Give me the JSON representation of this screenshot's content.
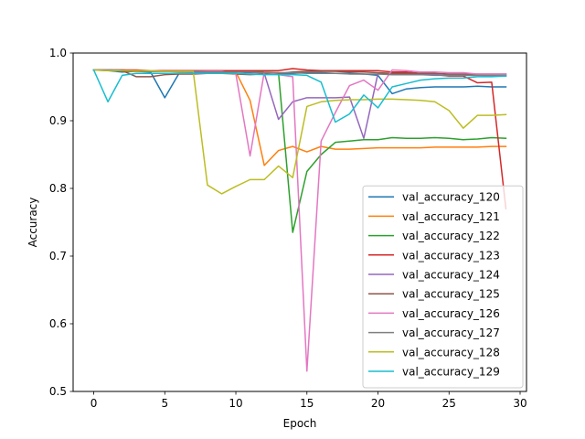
{
  "chart_data": {
    "type": "line",
    "title": "",
    "xlabel": "Epoch",
    "ylabel": "Accuracy",
    "xlim": [
      -1.45,
      30.45
    ],
    "ylim": [
      0.5,
      1.0
    ],
    "x_ticks": [
      0,
      5,
      10,
      15,
      20,
      25,
      30
    ],
    "y_ticks": [
      0.5,
      0.6,
      0.7,
      0.8,
      0.9,
      1.0
    ],
    "grid": false,
    "legend_position": "lower-right",
    "x": [
      0,
      1,
      2,
      3,
      4,
      5,
      6,
      7,
      8,
      9,
      10,
      11,
      12,
      13,
      14,
      15,
      16,
      17,
      18,
      19,
      20,
      21,
      22,
      23,
      24,
      25,
      26,
      27,
      28,
      29
    ],
    "series": [
      {
        "name": "val_accuracy_120",
        "color": "#1f77b4",
        "values": [
          0.975,
          0.974,
          0.972,
          0.973,
          0.972,
          0.934,
          0.97,
          0.97,
          0.971,
          0.972,
          0.972,
          0.971,
          0.971,
          0.97,
          0.97,
          0.971,
          0.971,
          0.97,
          0.97,
          0.969,
          0.967,
          0.94,
          0.947,
          0.949,
          0.95,
          0.95,
          0.95,
          0.951,
          0.95,
          0.95
        ]
      },
      {
        "name": "val_accuracy_121",
        "color": "#ff7f0e",
        "values": [
          0.975,
          0.975,
          0.974,
          0.973,
          0.973,
          0.973,
          0.972,
          0.972,
          0.972,
          0.972,
          0.972,
          0.93,
          0.834,
          0.856,
          0.862,
          0.854,
          0.862,
          0.858,
          0.858,
          0.859,
          0.86,
          0.86,
          0.86,
          0.86,
          0.861,
          0.861,
          0.861,
          0.861,
          0.862,
          0.862
        ]
      },
      {
        "name": "val_accuracy_122",
        "color": "#2ca02c",
        "values": [
          0.975,
          0.975,
          0.975,
          0.974,
          0.974,
          0.974,
          0.973,
          0.973,
          0.973,
          0.973,
          0.973,
          0.972,
          0.972,
          0.971,
          0.735,
          0.825,
          0.85,
          0.868,
          0.87,
          0.872,
          0.872,
          0.875,
          0.874,
          0.874,
          0.875,
          0.874,
          0.872,
          0.873,
          0.875,
          0.874
        ]
      },
      {
        "name": "val_accuracy_123",
        "color": "#d62728",
        "values": [
          0.975,
          0.975,
          0.975,
          0.975,
          0.974,
          0.974,
          0.974,
          0.974,
          0.974,
          0.974,
          0.974,
          0.974,
          0.974,
          0.974,
          0.977,
          0.975,
          0.974,
          0.974,
          0.974,
          0.974,
          0.974,
          0.972,
          0.972,
          0.97,
          0.968,
          0.966,
          0.966,
          0.956,
          0.957,
          0.77
        ]
      },
      {
        "name": "val_accuracy_124",
        "color": "#9467bd",
        "values": [
          0.975,
          0.975,
          0.974,
          0.974,
          0.973,
          0.973,
          0.973,
          0.972,
          0.972,
          0.972,
          0.972,
          0.972,
          0.97,
          0.902,
          0.928,
          0.934,
          0.934,
          0.934,
          0.935,
          0.874,
          0.97,
          0.968,
          0.968,
          0.968,
          0.967,
          0.967,
          0.967,
          0.967,
          0.966,
          0.966
        ]
      },
      {
        "name": "val_accuracy_125",
        "color": "#8c564b",
        "values": [
          0.975,
          0.975,
          0.974,
          0.965,
          0.965,
          0.968,
          0.969,
          0.969,
          0.97,
          0.97,
          0.969,
          0.968,
          0.969,
          0.97,
          0.972,
          0.973,
          0.973,
          0.973,
          0.972,
          0.972,
          0.971,
          0.97,
          0.97,
          0.97,
          0.97,
          0.969,
          0.969,
          0.969,
          0.969,
          0.969
        ]
      },
      {
        "name": "val_accuracy_126",
        "color": "#e377c2",
        "values": [
          0.975,
          0.975,
          0.974,
          0.974,
          0.974,
          0.973,
          0.973,
          0.973,
          0.973,
          0.973,
          0.969,
          0.848,
          0.972,
          0.968,
          0.965,
          0.53,
          0.87,
          0.912,
          0.952,
          0.96,
          0.945,
          0.975,
          0.974,
          0.972,
          0.972,
          0.971,
          0.971,
          0.969,
          0.969,
          0.969
        ]
      },
      {
        "name": "val_accuracy_127",
        "color": "#7f7f7f",
        "values": [
          0.975,
          0.975,
          0.974,
          0.974,
          0.973,
          0.973,
          0.973,
          0.973,
          0.972,
          0.972,
          0.972,
          0.972,
          0.971,
          0.971,
          0.971,
          0.97,
          0.97,
          0.97,
          0.969,
          0.969,
          0.969,
          0.968,
          0.968,
          0.968,
          0.968,
          0.967,
          0.967,
          0.967,
          0.967,
          0.967
        ]
      },
      {
        "name": "val_accuracy_128",
        "color": "#bcbd22",
        "values": [
          0.975,
          0.974,
          0.974,
          0.974,
          0.974,
          0.973,
          0.973,
          0.973,
          0.805,
          0.792,
          0.803,
          0.813,
          0.813,
          0.833,
          0.816,
          0.921,
          0.928,
          0.93,
          0.931,
          0.931,
          0.932,
          0.932,
          0.931,
          0.93,
          0.928,
          0.915,
          0.889,
          0.908,
          0.908,
          0.909
        ]
      },
      {
        "name": "val_accuracy_129",
        "color": "#17becf",
        "values": [
          0.975,
          0.928,
          0.967,
          0.97,
          0.97,
          0.97,
          0.97,
          0.97,
          0.97,
          0.97,
          0.97,
          0.969,
          0.968,
          0.968,
          0.968,
          0.967,
          0.957,
          0.898,
          0.91,
          0.938,
          0.919,
          0.95,
          0.955,
          0.96,
          0.962,
          0.963,
          0.963,
          0.965,
          0.965,
          0.966
        ]
      }
    ]
  }
}
